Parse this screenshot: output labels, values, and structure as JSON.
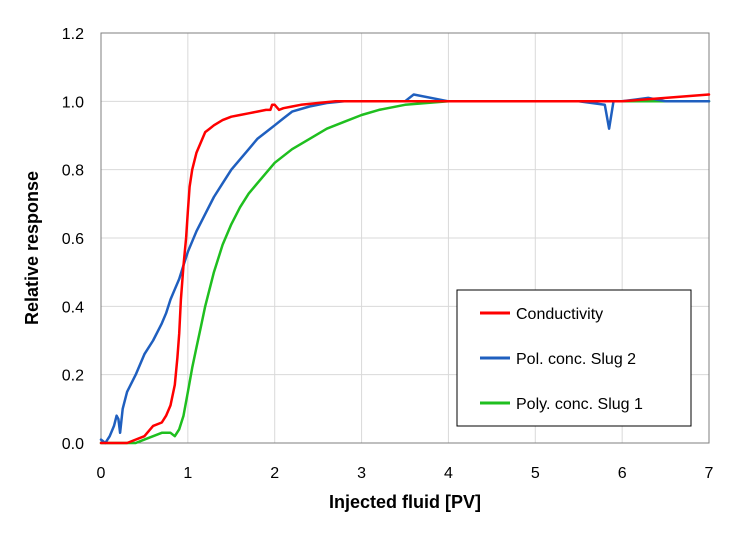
{
  "chart_data": {
    "type": "line",
    "title": "",
    "xlabel": "Injected fluid [PV]",
    "ylabel": "Relative response",
    "xlim": [
      0,
      7
    ],
    "ylim": [
      0,
      1.2
    ],
    "xticks": [
      "0",
      "1",
      "2",
      "3",
      "4",
      "5",
      "6",
      "7"
    ],
    "yticks": [
      "0.0",
      "0.2",
      "0.4",
      "0.6",
      "0.8",
      "1.0",
      "1.2"
    ],
    "grid": true,
    "legend_position": "bottom-right",
    "series": [
      {
        "name": "Conductivity",
        "color": "#ff0000",
        "x": [
          0,
          0.3,
          0.5,
          0.6,
          0.7,
          0.75,
          0.8,
          0.85,
          0.88,
          0.9,
          0.92,
          0.95,
          0.98,
          1.0,
          1.02,
          1.05,
          1.1,
          1.15,
          1.2,
          1.25,
          1.3,
          1.4,
          1.5,
          1.6,
          1.7,
          1.8,
          1.9,
          1.95,
          1.97,
          2.0,
          2.05,
          2.1,
          2.2,
          2.3,
          2.5,
          2.7,
          3.0,
          3.5,
          4.0,
          5.0,
          6.0,
          7.0
        ],
        "y": [
          0.0,
          0.0,
          0.02,
          0.05,
          0.06,
          0.08,
          0.11,
          0.17,
          0.25,
          0.32,
          0.42,
          0.52,
          0.6,
          0.68,
          0.75,
          0.8,
          0.85,
          0.88,
          0.91,
          0.92,
          0.93,
          0.945,
          0.955,
          0.96,
          0.965,
          0.97,
          0.975,
          0.975,
          0.99,
          0.99,
          0.975,
          0.98,
          0.985,
          0.99,
          0.995,
          1.0,
          1.0,
          1.0,
          1.0,
          1.0,
          1.0,
          1.02
        ]
      },
      {
        "name": "Pol. conc. Slug 2",
        "color": "#1f5fbf",
        "x": [
          0,
          0.05,
          0.1,
          0.15,
          0.18,
          0.2,
          0.22,
          0.25,
          0.3,
          0.4,
          0.5,
          0.6,
          0.7,
          0.75,
          0.8,
          0.85,
          0.9,
          0.95,
          1.0,
          1.1,
          1.2,
          1.3,
          1.4,
          1.5,
          1.6,
          1.7,
          1.8,
          1.9,
          2.0,
          2.1,
          2.2,
          2.4,
          2.6,
          2.8,
          3.0,
          3.2,
          3.5,
          3.6,
          4.0,
          4.5,
          5.0,
          5.5,
          5.8,
          5.85,
          5.9,
          6.0,
          6.3,
          6.5,
          7.0
        ],
        "y": [
          0.01,
          0.0,
          0.02,
          0.05,
          0.08,
          0.07,
          0.03,
          0.1,
          0.15,
          0.2,
          0.26,
          0.3,
          0.35,
          0.38,
          0.42,
          0.45,
          0.48,
          0.52,
          0.56,
          0.62,
          0.67,
          0.72,
          0.76,
          0.8,
          0.83,
          0.86,
          0.89,
          0.91,
          0.93,
          0.95,
          0.97,
          0.985,
          0.995,
          1.0,
          1.0,
          1.0,
          1.0,
          1.02,
          1.0,
          1.0,
          1.0,
          1.0,
          0.99,
          0.92,
          1.0,
          1.0,
          1.01,
          1.0,
          1.0
        ]
      },
      {
        "name": "Poly. conc. Slug 1",
        "color": "#1fbf1f",
        "x": [
          0,
          0.2,
          0.4,
          0.5,
          0.6,
          0.7,
          0.8,
          0.85,
          0.9,
          0.95,
          1.0,
          1.05,
          1.1,
          1.15,
          1.2,
          1.3,
          1.4,
          1.5,
          1.6,
          1.7,
          1.8,
          1.9,
          2.0,
          2.2,
          2.4,
          2.6,
          2.8,
          3.0,
          3.2,
          3.5,
          4.0,
          4.5,
          5.0,
          5.5,
          6.0,
          6.5,
          7.0
        ],
        "y": [
          0.0,
          0.0,
          0.0,
          0.01,
          0.02,
          0.03,
          0.03,
          0.02,
          0.04,
          0.08,
          0.15,
          0.22,
          0.28,
          0.34,
          0.4,
          0.5,
          0.58,
          0.64,
          0.69,
          0.73,
          0.76,
          0.79,
          0.82,
          0.86,
          0.89,
          0.92,
          0.94,
          0.96,
          0.975,
          0.99,
          1.0,
          1.0,
          1.0,
          1.0,
          1.0,
          1.0,
          1.0
        ]
      }
    ]
  }
}
